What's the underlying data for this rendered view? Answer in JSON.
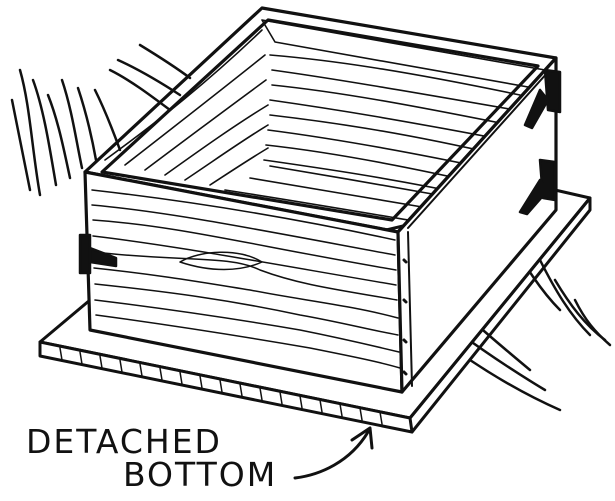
{
  "caption": {
    "line1": "DETACHED",
    "line2": "BOTTOM"
  },
  "colors": {
    "ink": "#111111",
    "paper": "#ffffff"
  }
}
